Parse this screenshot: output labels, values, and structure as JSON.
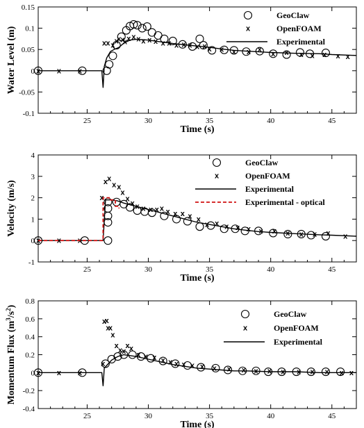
{
  "chart_data": [
    {
      "type": "scatter",
      "xlabel": "Time (s)",
      "ylabel": "Water Level (m)",
      "xlim": [
        21,
        47
      ],
      "ylim": [
        -0.1,
        0.15
      ],
      "xticks": [
        25,
        30,
        35,
        40,
        45
      ],
      "yticks": [
        -0.1,
        -0.05,
        0,
        0.05,
        0.1,
        0.15
      ],
      "ytick_labels": [
        "-0.1",
        "-0.05",
        "0",
        "0.05",
        "0.1",
        "0.15"
      ],
      "legend_position": "top-right",
      "series": [
        {
          "name": "GeoClaw",
          "marker": "circle",
          "x": [
            21.0,
            24.6,
            26.6,
            26.8,
            27.1,
            27.4,
            27.8,
            28.2,
            28.5,
            28.8,
            29.1,
            29.5,
            29.9,
            30.3,
            30.8,
            31.3,
            32.0,
            32.8,
            33.6,
            34.2,
            34.5,
            35.2,
            36.2,
            37.0,
            38.0,
            39.1,
            40.2,
            41.3,
            42.4,
            43.2,
            44.5
          ],
          "y": [
            0.0,
            0.0,
            0.0,
            0.015,
            0.035,
            0.06,
            0.08,
            0.095,
            0.105,
            0.109,
            0.107,
            0.1,
            0.104,
            0.09,
            0.083,
            0.075,
            0.07,
            0.062,
            0.057,
            0.075,
            0.06,
            0.048,
            0.049,
            0.048,
            0.045,
            0.046,
            0.04,
            0.038,
            0.043,
            0.04,
            0.042
          ]
        },
        {
          "name": "OpenFOAM",
          "marker": "x",
          "x": [
            21.0,
            22.7,
            24.4,
            26.4,
            26.7,
            27.1,
            27.4,
            27.6,
            27.9,
            28.1,
            28.4,
            28.8,
            29.2,
            29.6,
            30.1,
            30.6,
            31.2,
            31.7,
            32.3,
            32.9,
            33.4,
            34.0,
            34.6,
            35.0,
            36.0,
            37.0,
            38.2,
            39.1,
            40.2,
            41.3,
            42.5,
            43.4,
            44.4,
            45.5,
            46.3
          ],
          "y": [
            0.0,
            0.0,
            0.0,
            0.065,
            0.065,
            0.06,
            0.07,
            0.075,
            0.073,
            0.068,
            0.076,
            0.08,
            0.075,
            0.07,
            0.072,
            0.069,
            0.065,
            0.065,
            0.06,
            0.062,
            0.06,
            0.057,
            0.058,
            0.051,
            0.05,
            0.045,
            0.045,
            0.05,
            0.04,
            0.043,
            0.038,
            0.036,
            0.038,
            0.035,
            0.033
          ]
        },
        {
          "name": "Experimental",
          "marker": "line",
          "x": [
            21.0,
            26.2,
            26.3,
            26.4,
            26.6,
            26.9,
            27.2,
            27.6,
            28.0,
            28.5,
            29.0,
            30.0,
            31.0,
            32.0,
            33.0,
            34.0,
            35.0,
            36.0,
            37.0,
            38.0,
            40.0,
            42.0,
            44.0,
            45.0,
            47.0
          ],
          "y": [
            0.0,
            0.0,
            -0.04,
            0.01,
            0.03,
            0.045,
            0.05,
            0.055,
            0.065,
            0.072,
            0.074,
            0.072,
            0.068,
            0.064,
            0.061,
            0.058,
            0.055,
            0.051,
            0.048,
            0.046,
            0.043,
            0.041,
            0.04,
            0.038,
            0.036
          ]
        }
      ]
    },
    {
      "type": "scatter",
      "xlabel": "Time (s)",
      "ylabel": "Velocity (m/s)",
      "xlim": [
        21,
        47
      ],
      "ylim": [
        -1,
        4
      ],
      "xticks": [
        25,
        30,
        35,
        40,
        45
      ],
      "yticks": [
        -1,
        0,
        1,
        2,
        3,
        4
      ],
      "ytick_labels": [
        "-1",
        "0",
        "1",
        "2",
        "3",
        "4"
      ],
      "legend_position": "top-right",
      "series": [
        {
          "name": "GeoClaw",
          "marker": "circle",
          "x": [
            21.0,
            24.8,
            26.7,
            26.7,
            26.7,
            26.7,
            26.7,
            27.4,
            28.0,
            28.5,
            29.1,
            29.7,
            30.3,
            31.3,
            32.3,
            33.2,
            34.2,
            35.1,
            36.2,
            37.1,
            37.9,
            39.0,
            40.2,
            41.4,
            42.5,
            43.3,
            44.5
          ],
          "y": [
            0.0,
            0.0,
            0.0,
            0.85,
            1.15,
            1.5,
            1.8,
            1.8,
            1.7,
            1.55,
            1.4,
            1.35,
            1.3,
            1.15,
            1.0,
            0.9,
            0.65,
            0.7,
            0.55,
            0.55,
            0.45,
            0.45,
            0.35,
            0.3,
            0.3,
            0.25,
            0.2
          ]
        },
        {
          "name": "OpenFOAM",
          "marker": "x",
          "x": [
            21.0,
            22.7,
            24.4,
            26.2,
            26.5,
            26.8,
            27.2,
            27.6,
            27.9,
            28.3,
            28.7,
            29.1,
            29.6,
            30.2,
            30.7,
            31.1,
            31.6,
            32.2,
            32.8,
            33.4,
            34.1,
            34.8,
            35.6,
            36.4,
            37.3,
            38.2,
            39.2,
            40.3,
            41.4,
            42.5,
            43.6,
            44.7,
            46.1
          ],
          "y": [
            0.0,
            0.0,
            0.0,
            2.0,
            2.75,
            2.9,
            2.6,
            2.5,
            2.25,
            1.95,
            1.75,
            1.6,
            1.5,
            1.45,
            1.45,
            1.5,
            1.35,
            1.25,
            1.25,
            1.15,
            1.0,
            0.75,
            0.8,
            0.65,
            0.6,
            0.55,
            0.45,
            0.45,
            0.35,
            0.3,
            0.3,
            0.35,
            0.2
          ]
        },
        {
          "name": "Experimental",
          "marker": "line",
          "x": [
            21.0,
            26.3,
            26.5,
            27.0,
            27.5,
            28.0,
            29.0,
            30.0,
            31.0,
            32.0,
            33.0,
            34.0,
            35.0,
            36.0,
            37.0,
            38.0,
            39.0,
            40.0,
            42.0,
            44.0,
            45.0,
            47.0
          ],
          "y": [
            0.0,
            0.0,
            1.9,
            1.9,
            1.85,
            1.75,
            1.6,
            1.45,
            1.3,
            1.15,
            1.0,
            0.85,
            0.75,
            0.65,
            0.55,
            0.48,
            0.42,
            0.38,
            0.32,
            0.27,
            0.25,
            0.2
          ]
        },
        {
          "name": "Experimental - optical",
          "marker": "dashed",
          "x": [
            21.0,
            26.3,
            26.3,
            26.8,
            26.8,
            27.3,
            27.3,
            27.6,
            27.6
          ],
          "y": [
            0.0,
            0.0,
            2.0,
            2.0,
            1.9,
            1.9,
            1.6,
            1.6,
            1.5
          ]
        }
      ]
    },
    {
      "type": "scatter",
      "xlabel": "Time (s)",
      "ylabel": "Momentum Flux (m3/s2)",
      "xlim": [
        21,
        47
      ],
      "ylim": [
        -0.4,
        0.8
      ],
      "xticks": [
        25,
        30,
        35,
        40,
        45
      ],
      "yticks": [
        -0.4,
        -0.2,
        0,
        0.2,
        0.4,
        0.6,
        0.8
      ],
      "ytick_labels": [
        "-0.4",
        "-0.2",
        "0",
        "0.2",
        "0.4",
        "0.6",
        "0.8"
      ],
      "legend_position": "top-right",
      "series": [
        {
          "name": "GeoClaw",
          "marker": "circle",
          "x": [
            21.0,
            24.6,
            26.5,
            27.0,
            27.5,
            28.0,
            28.7,
            29.4,
            30.2,
            31.2,
            32.2,
            33.2,
            34.3,
            35.5,
            36.5,
            37.7,
            38.8,
            39.8,
            40.9,
            42.1,
            43.3,
            44.5,
            45.7
          ],
          "y": [
            0.0,
            0.0,
            0.1,
            0.15,
            0.18,
            0.2,
            0.2,
            0.18,
            0.16,
            0.13,
            0.1,
            0.08,
            0.06,
            0.05,
            0.03,
            0.02,
            0.02,
            0.01,
            0.01,
            0.01,
            0.01,
            0.01,
            0.01
          ]
        },
        {
          "name": "OpenFOAM",
          "marker": "x",
          "x": [
            21.0,
            22.7,
            24.4,
            26.3,
            26.4,
            26.6,
            26.7,
            26.9,
            27.1,
            27.4,
            27.7,
            28.0,
            28.3,
            28.6,
            29.2,
            29.8,
            30.5,
            31.2,
            31.8,
            32.3,
            32.9,
            33.6,
            34.4,
            35.4,
            36.6,
            37.8,
            38.8,
            39.9,
            41.0,
            42.3,
            43.4,
            44.6,
            45.8,
            46.6
          ],
          "y": [
            0.0,
            0.0,
            0.0,
            0.1,
            0.57,
            0.58,
            0.5,
            0.5,
            0.42,
            0.3,
            0.25,
            0.24,
            0.3,
            0.27,
            0.2,
            0.18,
            0.17,
            0.14,
            0.12,
            0.1,
            0.09,
            0.08,
            0.07,
            0.05,
            0.04,
            0.03,
            0.02,
            0.02,
            0.01,
            0.01,
            0.01,
            0.01,
            0.0,
            0.0
          ]
        },
        {
          "name": "Experimental",
          "marker": "line",
          "x": [
            21.0,
            26.2,
            26.3,
            26.4,
            26.6,
            27.0,
            27.5,
            28.0,
            28.5,
            29.0,
            30.0,
            31.0,
            32.0,
            33.0,
            34.0,
            35.0,
            36.0,
            37.0,
            38.0,
            40.0,
            42.0,
            44.0,
            47.0
          ],
          "y": [
            0.0,
            0.0,
            -0.15,
            0.05,
            0.08,
            0.14,
            0.18,
            0.2,
            0.19,
            0.18,
            0.15,
            0.12,
            0.09,
            0.07,
            0.05,
            0.04,
            0.03,
            0.02,
            0.02,
            0.01,
            0.01,
            0.0,
            0.0
          ]
        }
      ]
    }
  ]
}
